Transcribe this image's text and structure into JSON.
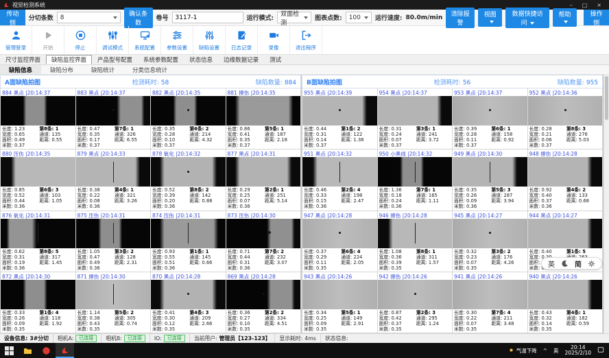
{
  "title_bar": {
    "app_title": "视觉检测系统",
    "minimize": "–",
    "maximize": "□",
    "close": "×"
  },
  "toolbar": {
    "side_left": "传动侧",
    "strip_count_label": "分切条数",
    "strip_count_value": "8",
    "confirm_button": "确认条数",
    "roll_label": "卷号",
    "roll_value": "3117-1",
    "run_mode_label": "运行模式:",
    "run_mode_value": "双面检测",
    "chart_points_label": "图表点数:",
    "chart_points_value": "100",
    "speed_label": "运行速度:",
    "speed_value": "80.0m/min",
    "clear_alarm": "清除报警",
    "view_menu": "视图",
    "data_access_menu": "数据快捷访问",
    "help_menu": "帮助",
    "side_right": "操作侧"
  },
  "actions": [
    {
      "label": "管理登录",
      "icon": "user-icon"
    },
    {
      "label": "开始",
      "icon": "play-icon"
    },
    {
      "label": "停止",
      "icon": "stop-icon"
    },
    {
      "label": "调试模式",
      "icon": "debug-sliders-icon"
    },
    {
      "label": "系统配置",
      "icon": "monitor-icon"
    },
    {
      "label": "参数设置",
      "icon": "params-sliders-icon"
    },
    {
      "label": "缺陷设置",
      "icon": "defect-sliders-icon"
    },
    {
      "label": "日志记录",
      "icon": "log-icon"
    },
    {
      "label": "录像",
      "icon": "camera-icon"
    },
    {
      "label": "退出程序",
      "icon": "exit-icon"
    }
  ],
  "tabs": {
    "main": [
      "尺寸监控界面",
      "缺陷监控界面",
      "产品型号配置",
      "系统参数配置",
      "状态信息",
      "边缘数据记录",
      "测试"
    ],
    "active_main": "缺陷监控界面",
    "sub": [
      "缺陷信息",
      "缺陷分布",
      "缺陷统计",
      "分类信息统计"
    ],
    "active_sub": "缺陷信息"
  },
  "info_labels": {
    "len": "长度:",
    "wid": "宽度:",
    "area": "面积:",
    "met": "米数:",
    "ch": "通道:",
    "dist": "距离:"
  },
  "panels": [
    {
      "name": "A面缺陷拍图",
      "time_label": "检测耗时:",
      "time_value": "58",
      "count_label": "缺陷数量:",
      "count_value": "884",
      "cells": [
        {
          "id": 884,
          "type": "黑点",
          "time": "20:14:37",
          "len": "1.23",
          "wid": "0.65",
          "area": "0.49",
          "met": "0.37",
          "sl": "第8条:",
          "sv": "1",
          "ch": "135",
          "dist": "0.55",
          "v": "v1",
          "mk": "none"
        },
        {
          "id": 883,
          "type": "黑点",
          "time": "20:14:37",
          "len": "0.47",
          "wid": "0.35",
          "area": "0.17",
          "met": "0.37",
          "sl": "第7条:",
          "sv": "1",
          "ch": "326",
          "dist": "6.55",
          "v": "v2",
          "mk": "dot"
        },
        {
          "id": 882,
          "type": "黑点",
          "time": "20:14:35",
          "len": "0.35",
          "wid": "0.28",
          "area": "0.10",
          "met": "0.37",
          "sl": "第6条:",
          "sv": "2",
          "ch": "214",
          "dist": "4.32",
          "v": "v1",
          "mk": "dot"
        },
        {
          "id": 881,
          "type": "擦伤",
          "time": "20:14:35",
          "len": "0.86",
          "wid": "0.41",
          "area": "0.35",
          "met": "0.37",
          "sl": "第5条:",
          "sv": "1",
          "ch": "187",
          "dist": "2.18",
          "v": "v3",
          "mk": "none"
        },
        {
          "id": 880,
          "type": "压伤",
          "time": "20:14:35",
          "len": "0.85",
          "wid": "0.52",
          "area": "0.44",
          "met": "0.36",
          "sl": "第6条:",
          "sv": "3",
          "ch": "103",
          "dist": "1.05",
          "v": "v4",
          "mk": "none"
        },
        {
          "id": 879,
          "type": "黑点",
          "time": "20:14:33",
          "len": "0.38",
          "wid": "0.22",
          "area": "0.08",
          "met": "0.36",
          "sl": "第4条:",
          "sv": "1",
          "ch": "321",
          "dist": "3.26",
          "v": "v5",
          "mk": "scratch"
        },
        {
          "id": 878,
          "type": "氧化",
          "time": "20:14:32",
          "len": "0.52",
          "wid": "0.39",
          "area": "0.20",
          "met": "0.36",
          "sl": "第8条:",
          "sv": "2",
          "ch": "142",
          "dist": "0.88",
          "v": "v6",
          "mk": "dot"
        },
        {
          "id": 877,
          "type": "黑点",
          "time": "20:14:31",
          "len": "0.29",
          "wid": "0.25",
          "area": "0.07",
          "met": "0.36",
          "sl": "第2条:",
          "sv": "1",
          "ch": "251",
          "dist": "5.14",
          "v": "v6",
          "mk": "none"
        },
        {
          "id": 876,
          "type": "氧化",
          "time": "20:14:31",
          "len": "0.62",
          "wid": "0.31",
          "area": "0.19",
          "met": "0.36",
          "sl": "第8条:",
          "sv": "5",
          "ch": "317",
          "dist": "1.45",
          "v": "v8",
          "mk": "scratch"
        },
        {
          "id": 875,
          "type": "压伤",
          "time": "20:14:31",
          "len": "1.05",
          "wid": "0.47",
          "area": "0.49",
          "met": "0.36",
          "sl": "第3条:",
          "sv": "2",
          "ch": "128",
          "dist": "2.31",
          "v": "v1",
          "mk": "scratch"
        },
        {
          "id": 874,
          "type": "压伤",
          "time": "20:14:31",
          "len": "0.93",
          "wid": "0.55",
          "area": "0.51",
          "met": "0.36",
          "sl": "第1条:",
          "sv": "1",
          "ch": "145",
          "dist": "0.66",
          "v": "v3",
          "mk": "scratch"
        },
        {
          "id": 873,
          "type": "压伤",
          "time": "20:14:30",
          "len": "0.71",
          "wid": "0.44",
          "area": "0.31",
          "met": "0.36",
          "sl": "第7条:",
          "sv": "2",
          "ch": "232",
          "dist": "3.07",
          "v": "v2",
          "mk": "blob"
        },
        {
          "id": 872,
          "type": "黑点",
          "time": "20:14:30",
          "len": "0.33",
          "wid": "0.26",
          "area": "0.09",
          "met": "0.35",
          "sl": "第1条:",
          "sv": "4",
          "ch": "118",
          "dist": "1.92",
          "v": "v1",
          "mk": "none"
        },
        {
          "id": 871,
          "type": "擦伤",
          "time": "20:14:30",
          "len": "1.14",
          "wid": "0.38",
          "area": "0.43",
          "met": "0.35",
          "sl": "第5条:",
          "sv": "2",
          "ch": "305",
          "dist": "0.74",
          "v": "v7",
          "mk": "scratch"
        },
        {
          "id": 870,
          "type": "黑点",
          "time": "20:14:28",
          "len": "0.41",
          "wid": "0.30",
          "area": "0.12",
          "met": "0.35",
          "sl": "第4条:",
          "sv": "3",
          "ch": "209",
          "dist": "2.66",
          "v": "v6",
          "mk": "dot"
        },
        {
          "id": 869,
          "type": "黑点",
          "time": "20:14:28",
          "len": "0.36",
          "wid": "0.27",
          "area": "0.10",
          "met": "0.35",
          "sl": "第2条:",
          "sv": "2",
          "ch": "334",
          "dist": "4.51",
          "v": "v2",
          "mk": "dot"
        }
      ]
    },
    {
      "name": "B面缺陷拍图",
      "time_label": "检测耗时:",
      "time_value": "56",
      "count_label": "缺陷数量:",
      "count_value": "955",
      "cells": [
        {
          "id": 955,
          "type": "黑点",
          "time": "20:14:39",
          "len": "0.44",
          "wid": "0.31",
          "area": "0.14",
          "met": "0.37",
          "sl": "第1条:",
          "sv": "2",
          "ch": "122",
          "dist": "1.38",
          "v": "v5",
          "mk": "dot"
        },
        {
          "id": 954,
          "type": "黑点",
          "time": "20:14:37",
          "len": "0.31",
          "wid": "0.24",
          "area": "0.07",
          "met": "0.37",
          "sl": "第3条:",
          "sv": "1",
          "ch": "241",
          "dist": "3.72",
          "v": "v5",
          "mk": "none"
        },
        {
          "id": 953,
          "type": "黑点",
          "time": "20:14:37",
          "len": "0.39",
          "wid": "0.28",
          "area": "0.11",
          "met": "0.37",
          "sl": "第6条:",
          "sv": "1",
          "ch": "158",
          "dist": "0.92",
          "v": "v7",
          "mk": "dot"
        },
        {
          "id": 952,
          "type": "黑点",
          "time": "20:14:36",
          "len": "0.28",
          "wid": "0.21",
          "area": "0.06",
          "met": "0.37",
          "sl": "第8条:",
          "sv": "3",
          "ch": "276",
          "dist": "5.03",
          "v": "v7",
          "mk": "dot"
        },
        {
          "id": 951,
          "type": "黑点",
          "time": "20:14:32",
          "len": "0.46",
          "wid": "0.33",
          "area": "0.15",
          "met": "0.36",
          "sl": "第2条:",
          "sv": "4",
          "ch": "198",
          "dist": "2.47",
          "v": "v4",
          "mk": "scratch"
        },
        {
          "id": 950,
          "type": "小黑线",
          "time": "20:14:32",
          "len": "1.36",
          "wid": "0.18",
          "area": "0.24",
          "met": "0.36",
          "sl": "第7条:",
          "sv": "1",
          "ch": "165",
          "dist": "1.11",
          "v": "v1",
          "mk": "scratch"
        },
        {
          "id": 949,
          "type": "黑点",
          "time": "20:14:30",
          "len": "0.35",
          "wid": "0.26",
          "area": "0.09",
          "met": "0.36",
          "sl": "第5条:",
          "sv": "3",
          "ch": "287",
          "dist": "3.94",
          "v": "v5",
          "mk": "scratch"
        },
        {
          "id": 948,
          "type": "擦伤",
          "time": "20:14:28",
          "len": "0.92",
          "wid": "0.40",
          "area": "0.37",
          "met": "0.36",
          "sl": "第4条:",
          "sv": "2",
          "ch": "133",
          "dist": "0.68",
          "v": "v5",
          "mk": "none"
        },
        {
          "id": 947,
          "type": "黑点",
          "time": "20:14:28",
          "len": "0.37",
          "wid": "0.29",
          "area": "0.11",
          "met": "0.35",
          "sl": "第6条:",
          "sv": "4",
          "ch": "224",
          "dist": "2.05",
          "v": "v7",
          "mk": "dot"
        },
        {
          "id": 946,
          "type": "擦伤",
          "time": "20:14:28",
          "len": "1.08",
          "wid": "0.36",
          "area": "0.39",
          "met": "0.35",
          "sl": "第8条:",
          "sv": "1",
          "ch": "311",
          "dist": "1.57",
          "v": "v4",
          "mk": "scratch"
        },
        {
          "id": 945,
          "type": "黑点",
          "time": "20:14:27",
          "len": "0.32",
          "wid": "0.23",
          "area": "0.07",
          "met": "0.35",
          "sl": "第3条:",
          "sv": "2",
          "ch": "176",
          "dist": "4.26",
          "v": "v7",
          "mk": "dot"
        },
        {
          "id": 944,
          "type": "黑点",
          "time": "20:14:27",
          "len": "0.40",
          "wid": "0.30",
          "area": "0.12",
          "met": "0.35",
          "sl": "第1条:",
          "sv": "5",
          "ch": "263",
          "dist": "0.83",
          "v": "v5",
          "mk": "none"
        },
        {
          "id": 943,
          "type": "黑点",
          "time": "20:14:26",
          "len": "0.34",
          "wid": "0.25",
          "area": "0.09",
          "met": "0.35",
          "sl": "第5条:",
          "sv": "1",
          "ch": "149",
          "dist": "2.91",
          "v": "v7",
          "mk": "none"
        },
        {
          "id": 942,
          "type": "擦伤",
          "time": "20:14:26",
          "len": "0.87",
          "wid": "0.42",
          "area": "0.37",
          "met": "0.35",
          "sl": "第2条:",
          "sv": "3",
          "ch": "295",
          "dist": "1.24",
          "v": "v7",
          "mk": "dot"
        },
        {
          "id": 941,
          "type": "黑点",
          "time": "20:14:26",
          "len": "0.30",
          "wid": "0.22",
          "area": "0.07",
          "met": "0.35",
          "sl": "第7条:",
          "sv": "4",
          "ch": "211",
          "dist": "3.48",
          "v": "v7",
          "mk": "none"
        },
        {
          "id": 940,
          "type": "黑点",
          "time": "20:14:26",
          "len": "0.43",
          "wid": "0.32",
          "area": "0.14",
          "met": "0.35",
          "sl": "第4条:",
          "sv": "1",
          "ch": "182",
          "dist": "0.59",
          "v": "v5",
          "mk": "none"
        }
      ]
    }
  ],
  "lang_switcher": {
    "en": "英",
    "cn": "简"
  },
  "status_bar": {
    "device_label": "设备信息:",
    "device_value": "3#分切",
    "cam_a_label": "相机A:",
    "cam_a_value": "已连接",
    "cam_b_label": "相机B:",
    "cam_b_value": "已连接",
    "io_label": "IO:",
    "io_value": "已连接",
    "user_label": "当前用户:",
    "user_value": "管理员【123-123】",
    "display_label": "显示耗时:",
    "display_value": "4ms",
    "state_label": "状态信息:"
  },
  "taskbar": {
    "weather": "气温下降",
    "tray_caret": "^",
    "lang": "英",
    "time": "20:14",
    "date": "2025/2/10"
  }
}
